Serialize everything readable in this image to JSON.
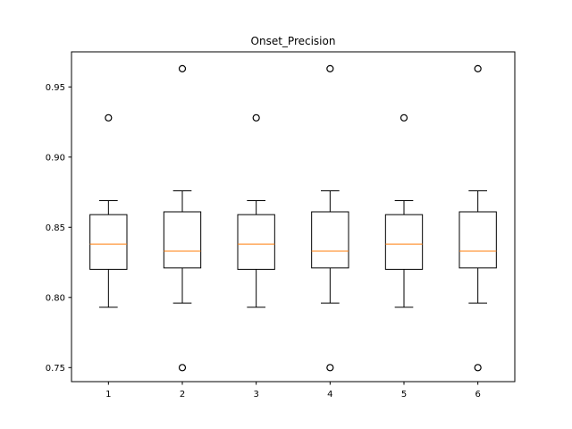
{
  "chart_data": {
    "type": "boxplot",
    "title": "Onset_Precision",
    "xlabel": "",
    "ylabel": "",
    "categories": [
      "1",
      "2",
      "3",
      "4",
      "5",
      "6"
    ],
    "ylim": [
      0.74,
      0.975
    ],
    "yticks": [
      0.75,
      0.8,
      0.85,
      0.9,
      0.95
    ],
    "ytick_labels": [
      "0.75",
      "0.80",
      "0.85",
      "0.90",
      "0.95"
    ],
    "grid": false,
    "colors": {
      "box": "#000000",
      "median": "#ff7f0e",
      "flier": "#000000"
    },
    "boxes": [
      {
        "whisker_low": 0.793,
        "q1": 0.82,
        "median": 0.838,
        "q3": 0.859,
        "whisker_high": 0.869,
        "fliers": [
          0.928
        ]
      },
      {
        "whisker_low": 0.796,
        "q1": 0.821,
        "median": 0.833,
        "q3": 0.861,
        "whisker_high": 0.876,
        "fliers": [
          0.963,
          0.75
        ]
      },
      {
        "whisker_low": 0.793,
        "q1": 0.82,
        "median": 0.838,
        "q3": 0.859,
        "whisker_high": 0.869,
        "fliers": [
          0.928
        ]
      },
      {
        "whisker_low": 0.796,
        "q1": 0.821,
        "median": 0.833,
        "q3": 0.861,
        "whisker_high": 0.876,
        "fliers": [
          0.963,
          0.75
        ]
      },
      {
        "whisker_low": 0.793,
        "q1": 0.82,
        "median": 0.838,
        "q3": 0.859,
        "whisker_high": 0.869,
        "fliers": [
          0.928
        ]
      },
      {
        "whisker_low": 0.796,
        "q1": 0.821,
        "median": 0.833,
        "q3": 0.861,
        "whisker_high": 0.876,
        "fliers": [
          0.963,
          0.75
        ]
      }
    ]
  }
}
